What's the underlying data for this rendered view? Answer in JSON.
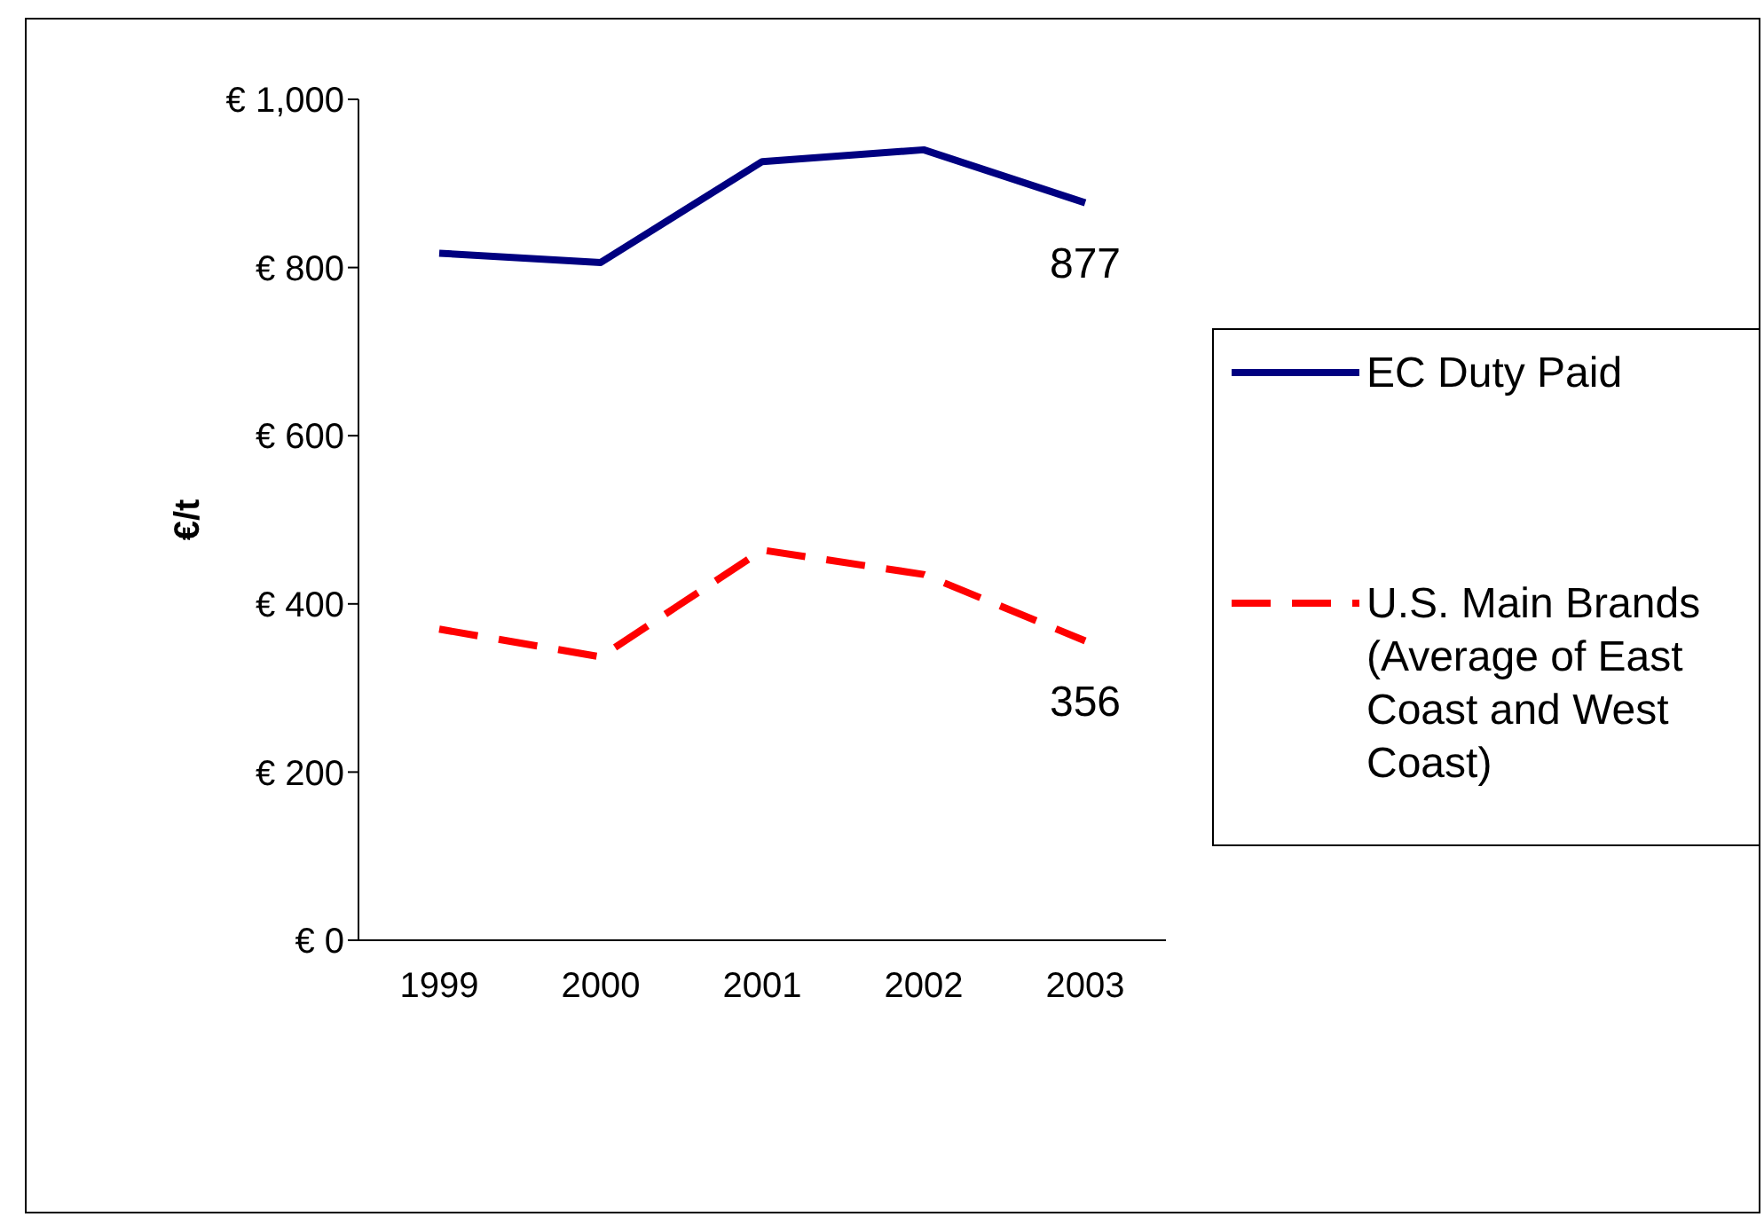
{
  "chart_data": {
    "type": "line",
    "ylabel": "€/t",
    "categories": [
      "1999",
      "2000",
      "2001",
      "2002",
      "2003"
    ],
    "series": [
      {
        "name": "EC Duty Paid",
        "color": "#000080",
        "line_style": "solid",
        "values": [
          817,
          806,
          926,
          940,
          877
        ],
        "value_labels": [
          null,
          null,
          null,
          null,
          "877"
        ]
      },
      {
        "name": "U.S. Main Brands (Average of East Coast and West Coast)",
        "color": "#ff0000",
        "line_style": "dashed",
        "values": [
          370,
          337,
          464,
          435,
          356
        ],
        "value_labels": [
          null,
          null,
          null,
          null,
          "356"
        ]
      }
    ],
    "ylim": [
      0,
      1000
    ],
    "yticks": [
      {
        "value": 0,
        "label": "€ 0"
      },
      {
        "value": 200,
        "label": "€ 200"
      },
      {
        "value": 400,
        "label": "€ 400"
      },
      {
        "value": 600,
        "label": "€ 600"
      },
      {
        "value": 800,
        "label": "€ 800"
      },
      {
        "value": 1000,
        "label": "€ 1,000"
      }
    ],
    "grid": false,
    "legend": "right",
    "marker": "none"
  }
}
